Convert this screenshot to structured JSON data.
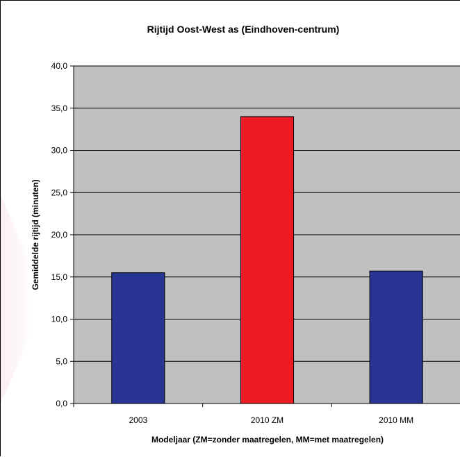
{
  "chart_data": {
    "type": "bar",
    "title": "Rijtijd Oost-West as (Eindhoven-centrum)",
    "xlabel": "Modeljaar (ZM=zonder maatregelen, MM=met maatregelen)",
    "ylabel": "Gemiddelde rijtijd  (minuten)",
    "categories": [
      "2003",
      "2010 ZM",
      "2010 MM"
    ],
    "values": [
      15.5,
      34.0,
      15.7
    ],
    "bar_colors": [
      "#283593",
      "#ed1c24",
      "#283593"
    ],
    "ylim": [
      0,
      40
    ],
    "yticks": [
      "0,0",
      "5,0",
      "10,0",
      "15,0",
      "20,0",
      "25,0",
      "30,0",
      "35,0",
      "40,0"
    ],
    "ytick_values": [
      0,
      5,
      10,
      15,
      20,
      25,
      30,
      35,
      40
    ],
    "grid": true,
    "plot_background": "#c0c0c0",
    "legend": "none"
  }
}
